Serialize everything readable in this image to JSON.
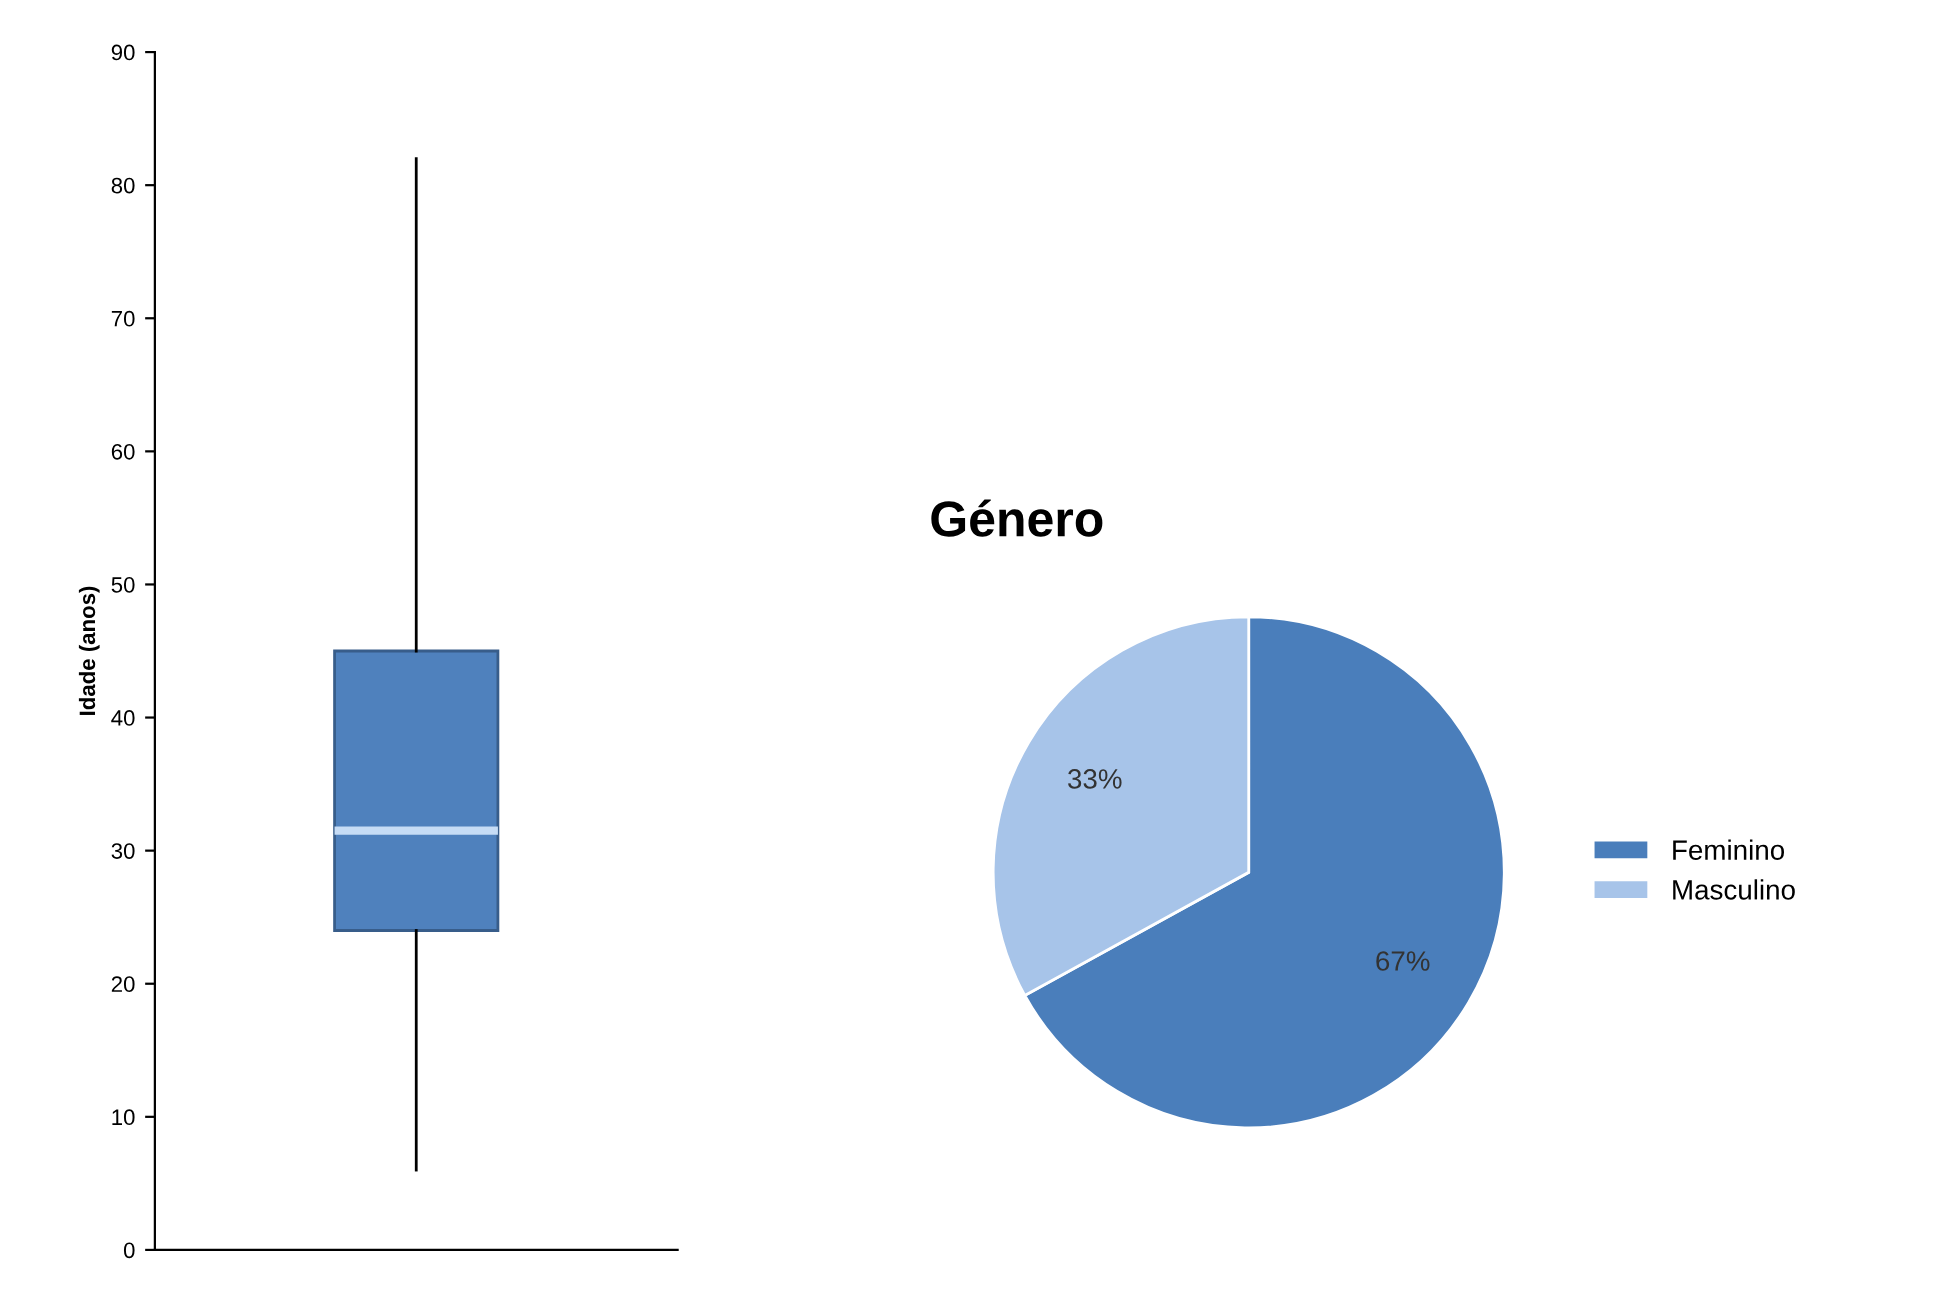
{
  "chart_data": [
    {
      "type": "box",
      "ylabel": "Idade (anos)",
      "categories": [
        null
      ],
      "color": "#4f81bd",
      "ylim": [
        0,
        90
      ],
      "yticks": [
        0,
        10,
        20,
        30,
        40,
        50,
        60,
        70,
        80,
        90
      ],
      "grid": false,
      "boxes": [
        {
          "low": 6,
          "q1": 24,
          "median": 31.5,
          "q3": 45,
          "high": 82
        }
      ]
    },
    {
      "type": "pie",
      "title": "Género",
      "categories": [
        "Feminino",
        "Masculino"
      ],
      "values": [
        67,
        33
      ],
      "colors": [
        "#4a7ebb",
        "#a7c4e9"
      ],
      "value_labels": [
        "67%",
        "33%"
      ],
      "legend": "right"
    }
  ]
}
